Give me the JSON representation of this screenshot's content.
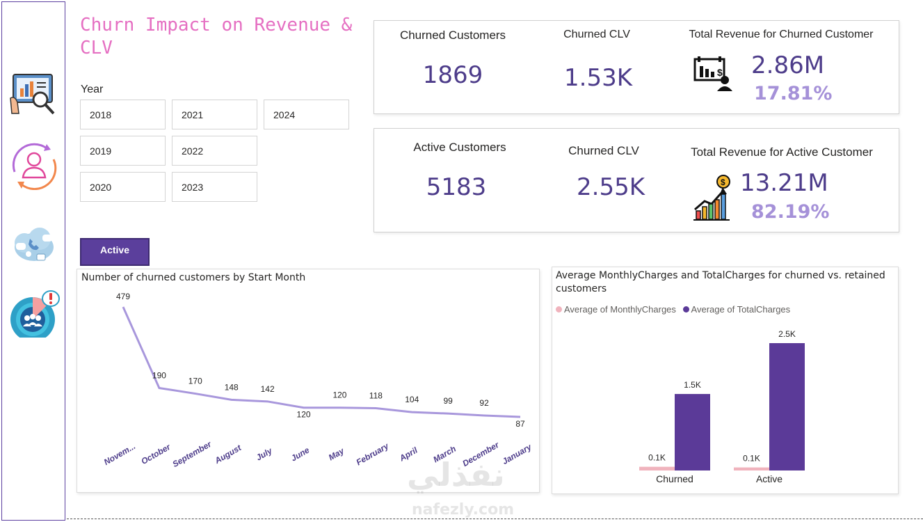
{
  "page": {
    "title": "Churn Impact on Revenue & CLV"
  },
  "sidebar": {
    "icons": [
      "dashboard-analysis-icon",
      "customer-cycle-icon",
      "communication-cloud-icon",
      "churn-alert-icon"
    ]
  },
  "filter": {
    "label": "Year",
    "years": [
      "2018",
      "2019",
      "2020",
      "2021",
      "2022",
      "2023",
      "2024"
    ]
  },
  "status_button": {
    "label": "Active"
  },
  "churned_kpis": {
    "customers_label": "Churned Customers",
    "customers_value": "1869",
    "clv_label": "Churned CLV",
    "clv_value": "1.53K",
    "revenue_label": "Total Revenue for Churned Customer",
    "revenue_value": "2.86M",
    "revenue_pct": "17.81%",
    "icon": "revenue-decline-icon"
  },
  "active_kpis": {
    "customers_label": "Active Customers",
    "customers_value": "5183",
    "clv_label": "Churned CLV",
    "clv_value": "2.55K",
    "revenue_label": "Total Revenue for Active Customer",
    "revenue_value": "13.21M",
    "revenue_pct": "82.19%",
    "icon": "revenue-growth-icon"
  },
  "colors": {
    "title": "#e56fc2",
    "kpi_value": "#4d3c8a",
    "kpi_pct": "#a591d8",
    "line": "#a897dc",
    "month_label": "#4d3c8a",
    "monthly_bar": "#f0b3bd",
    "total_bar": "#5b3a98",
    "button": "#5b3f9c"
  },
  "chart_data": [
    {
      "type": "line",
      "title": "Number of churned customers by Start Month",
      "categories": [
        "Novem...",
        "October",
        "September",
        "August",
        "July",
        "June",
        "May",
        "February",
        "April",
        "March",
        "December",
        "January"
      ],
      "values": [
        479,
        190,
        170,
        148,
        142,
        120,
        120,
        118,
        104,
        99,
        92,
        87
      ],
      "data_labels": [
        "479",
        "190",
        "170",
        "148",
        "142",
        "120",
        "120",
        "118",
        "104",
        "99",
        "92",
        "87"
      ],
      "xlabel": "",
      "ylabel": "",
      "grid": false
    },
    {
      "type": "bar",
      "title": "Average MonthlyCharges and TotalCharges for churned vs. retained customers",
      "categories": [
        "Churned",
        "Active"
      ],
      "series": [
        {
          "name": "Average of MonthlyCharges",
          "values": [
            74.4,
            61.3
          ],
          "labels": [
            "0.1K",
            "0.1K"
          ]
        },
        {
          "name": "Average of TotalCharges",
          "values": [
            1531.8,
            2549.9
          ],
          "labels": [
            "1.5K",
            "2.5K"
          ]
        }
      ],
      "legend": "top-left",
      "grid": false
    }
  ]
}
